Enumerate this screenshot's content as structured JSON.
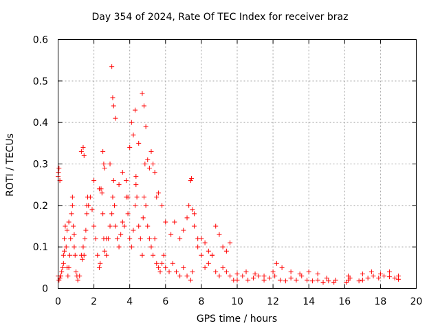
{
  "chart_data": {
    "type": "scatter",
    "title": "Day 354 of 2024, Rate Of TEC Index for receiver braz",
    "xlabel": "GPS time / hours",
    "ylabel": "ROTI / TECUs",
    "xlim": [
      0,
      20
    ],
    "ylim": [
      0,
      0.6
    ],
    "xticks": [
      "0",
      "2",
      "4",
      "6",
      "8",
      "10",
      "12",
      "14",
      "16",
      "18",
      "20"
    ],
    "yticks": [
      "0",
      "0.1",
      "0.2",
      "0.3",
      "0.4",
      "0.5",
      "0.6"
    ],
    "grid": true,
    "marker": "plus",
    "color": "#ff0000",
    "x": [
      0.0,
      0.05,
      0.1,
      0.15,
      0.2,
      0.25,
      0.3,
      0.35,
      0.4,
      0.45,
      0.5,
      0.55,
      0.6,
      0.65,
      0.7,
      0.75,
      0.8,
      0.85,
      0.9,
      0.95,
      1.0,
      1.05,
      1.1,
      1.2,
      1.3,
      1.35,
      1.4,
      1.45,
      1.5,
      1.55,
      1.6,
      1.7,
      1.8,
      1.9,
      2.0,
      2.1,
      2.2,
      2.3,
      2.35,
      2.4,
      2.45,
      2.5,
      2.55,
      2.6,
      2.7,
      2.8,
      2.9,
      3.0,
      3.05,
      3.1,
      3.15,
      3.2,
      3.3,
      3.4,
      3.5,
      3.6,
      3.7,
      3.8,
      3.9,
      4.0,
      4.1,
      4.2,
      4.3,
      4.35,
      4.4,
      4.5,
      4.6,
      4.7,
      4.75,
      4.8,
      4.85,
      4.9,
      5.0,
      5.1,
      5.2,
      5.3,
      5.4,
      5.5,
      5.6,
      5.7,
      5.8,
      5.9,
      6.0,
      6.2,
      6.4,
      6.6,
      6.8,
      7.0,
      7.2,
      7.4,
      7.5,
      7.6,
      7.8,
      8.0,
      8.2,
      8.4,
      8.6,
      8.8,
      9.0,
      9.2,
      9.4,
      9.6,
      9.8,
      10.0,
      10.3,
      10.6,
      10.9,
      11.2,
      11.5,
      11.8,
      12.1,
      12.4,
      12.7,
      13.0,
      13.3,
      13.6,
      13.9,
      14.2,
      14.5,
      14.8,
      15.1,
      15.4,
      16.1,
      16.2,
      16.3,
      16.8,
      17.0,
      17.3,
      17.6,
      17.9,
      18.2,
      18.5,
      18.8,
      19.0,
      0.0,
      0.02,
      0.05,
      0.1,
      0.15,
      0.3,
      0.35,
      0.5,
      0.6,
      0.8,
      0.9,
      1.3,
      1.4,
      1.45,
      1.6,
      1.65,
      2.0,
      2.3,
      2.5,
      2.55,
      2.6,
      2.7,
      2.9,
      3.0,
      3.05,
      3.1,
      3.2,
      3.4,
      3.6,
      3.8,
      3.9,
      4.0,
      4.1,
      4.2,
      4.3,
      4.35,
      4.5,
      4.7,
      4.8,
      4.9,
      5.0,
      5.1,
      5.2,
      5.3,
      5.4,
      5.5,
      5.6,
      5.8,
      6.0,
      6.3,
      6.5,
      6.8,
      7.0,
      7.2,
      7.3,
      7.4,
      7.45,
      7.5,
      7.6,
      7.8,
      8.0,
      8.2,
      8.4,
      8.6,
      8.8,
      9.0,
      9.2,
      9.4,
      9.6,
      10.0,
      10.5,
      11.0,
      11.5,
      12.0,
      12.2,
      12.5,
      13.0,
      13.5,
      14.0,
      14.5,
      15.0,
      15.5,
      16.2,
      17.0,
      17.5,
      18.0,
      18.5,
      19.0
    ],
    "y": [
      0.03,
      0.02,
      0.025,
      0.03,
      0.04,
      0.05,
      0.08,
      0.12,
      0.15,
      0.1,
      0.05,
      0.03,
      0.05,
      0.08,
      0.12,
      0.18,
      0.2,
      0.15,
      0.1,
      0.08,
      0.04,
      0.03,
      0.02,
      0.03,
      0.08,
      0.07,
      0.1,
      0.08,
      0.12,
      0.14,
      0.18,
      0.2,
      0.22,
      0.19,
      0.15,
      0.12,
      0.08,
      0.05,
      0.06,
      0.24,
      0.23,
      0.18,
      0.12,
      0.09,
      0.08,
      0.12,
      0.15,
      0.18,
      0.22,
      0.26,
      0.2,
      0.15,
      0.12,
      0.1,
      0.13,
      0.16,
      0.15,
      0.22,
      0.18,
      0.12,
      0.1,
      0.14,
      0.2,
      0.25,
      0.22,
      0.15,
      0.12,
      0.08,
      0.17,
      0.22,
      0.3,
      0.2,
      0.15,
      0.12,
      0.1,
      0.08,
      0.12,
      0.06,
      0.05,
      0.04,
      0.06,
      0.08,
      0.05,
      0.04,
      0.06,
      0.04,
      0.03,
      0.05,
      0.03,
      0.02,
      0.04,
      0.18,
      0.12,
      0.08,
      0.05,
      0.06,
      0.08,
      0.04,
      0.03,
      0.05,
      0.04,
      0.03,
      0.02,
      0.02,
      0.03,
      0.02,
      0.025,
      0.03,
      0.02,
      0.025,
      0.03,
      0.02,
      0.018,
      0.025,
      0.02,
      0.03,
      0.02,
      0.018,
      0.02,
      0.015,
      0.018,
      0.015,
      0.015,
      0.02,
      0.025,
      0.018,
      0.02,
      0.025,
      0.03,
      0.025,
      0.03,
      0.028,
      0.025,
      0.022,
      0.27,
      0.28,
      0.29,
      0.26,
      0.03,
      0.06,
      0.09,
      0.14,
      0.16,
      0.22,
      0.13,
      0.33,
      0.34,
      0.32,
      0.2,
      0.22,
      0.26,
      0.24,
      0.33,
      0.3,
      0.29,
      0.12,
      0.3,
      0.535,
      0.46,
      0.44,
      0.41,
      0.25,
      0.28,
      0.26,
      0.22,
      0.34,
      0.4,
      0.37,
      0.43,
      0.27,
      0.35,
      0.47,
      0.44,
      0.39,
      0.31,
      0.29,
      0.33,
      0.3,
      0.28,
      0.22,
      0.23,
      0.2,
      0.16,
      0.13,
      0.16,
      0.12,
      0.14,
      0.17,
      0.2,
      0.26,
      0.265,
      0.19,
      0.15,
      0.1,
      0.12,
      0.11,
      0.09,
      0.08,
      0.15,
      0.13,
      0.1,
      0.09,
      0.11,
      0.035,
      0.04,
      0.035,
      0.03,
      0.04,
      0.06,
      0.05,
      0.04,
      0.035,
      0.04,
      0.035,
      0.025,
      0.02,
      0.03,
      0.035,
      0.04,
      0.035,
      0.04,
      0.03
    ]
  }
}
